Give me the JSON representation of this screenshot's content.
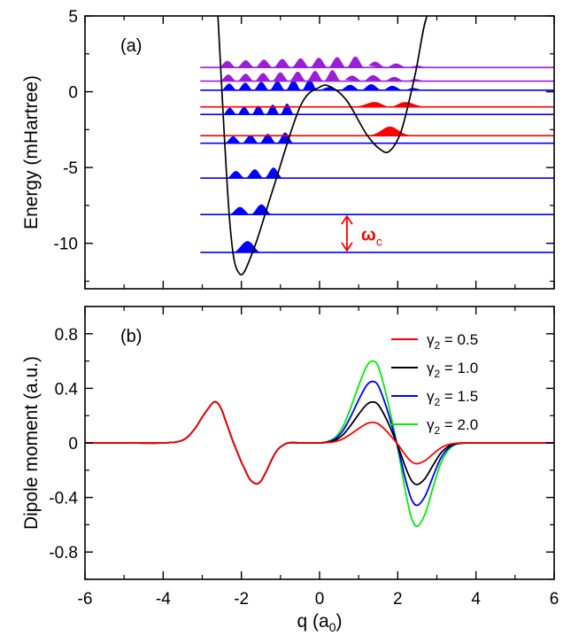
{
  "colors": {
    "blue": "#0000ff",
    "red": "#ff0000",
    "purple": "#9a1fd6",
    "black": "#000000",
    "green": "#00ee00"
  },
  "chart_data": [
    {
      "type": "line",
      "panel_label": "(a)",
      "ylabel": "Energy (mHartree)",
      "xlim": [
        -6,
        6
      ],
      "ylim": [
        -13,
        5
      ],
      "xticks": [
        -6,
        -4,
        -2,
        0,
        2,
        4,
        6
      ],
      "yticks": [
        5,
        0,
        -5,
        -10
      ],
      "ytick_labels": [
        "5",
        "0",
        "-5",
        "-10"
      ],
      "grid": false,
      "potential_color": "black",
      "potential_samples": {
        "q": [
          -2.6,
          -2.3,
          -2.05,
          -1.7,
          -1.2,
          -0.5,
          0.0,
          0.3,
          0.7,
          1.2,
          1.55,
          1.8,
          2.1,
          2.45,
          2.75,
          3.1
        ],
        "E": [
          5.0,
          -8.5,
          -12.0,
          -10.5,
          -6.5,
          -1.0,
          0.3,
          0.3,
          -0.6,
          -2.8,
          -3.8,
          -3.9,
          -2.5,
          1.2,
          5.0,
          5.0
        ]
      },
      "levels": [
        {
          "energy": -10.6,
          "color": "blue",
          "nodes": 0
        },
        {
          "energy": -8.1,
          "color": "blue",
          "nodes": 1
        },
        {
          "energy": -5.7,
          "color": "blue",
          "nodes": 2
        },
        {
          "energy": -3.4,
          "color": "blue",
          "nodes": 3
        },
        {
          "energy": -2.9,
          "color": "red",
          "nodes": 0
        },
        {
          "energy": -1.5,
          "color": "blue",
          "nodes": 4
        },
        {
          "energy": -1.0,
          "color": "red",
          "nodes": 1
        },
        {
          "energy": 0.1,
          "color": "blue",
          "nodes": 5
        },
        {
          "energy": 0.7,
          "color": "purple",
          "nodes": 6
        },
        {
          "energy": 1.6,
          "color": "purple",
          "nodes": 7
        }
      ],
      "annotation": {
        "text": "ω",
        "subscript": "c",
        "color": "red",
        "q": 0.7,
        "from_energy": -10.6,
        "to_energy": -8.1
      }
    },
    {
      "type": "line",
      "panel_label": "(b)",
      "xlabel": "q (a",
      "xlabel_subscript": "0",
      "xlabel_suffix": ")",
      "ylabel": "Dipole moment (a.u.)",
      "xlim": [
        -6,
        6
      ],
      "ylim": [
        -1.0,
        1.0
      ],
      "xticks": [
        -6,
        -4,
        -2,
        0,
        2,
        4,
        6
      ],
      "xtick_labels": [
        "-6",
        "-4",
        "-2",
        "0",
        "2",
        "4",
        "6"
      ],
      "yticks": [
        0.8,
        0.4,
        0,
        -0.4,
        -0.8
      ],
      "ytick_labels": [
        "0.8",
        "0.4",
        "0",
        "-0.4",
        "-0.8"
      ],
      "grid": false,
      "legend_position": "top-right",
      "x": [
        -6.0,
        -5.0,
        -4.0,
        -3.5,
        -3.2,
        -3.0,
        -2.8,
        -2.7,
        -2.6,
        -2.5,
        -2.4,
        -2.3,
        -2.2,
        -2.1,
        -2.0,
        -1.9,
        -1.8,
        -1.7,
        -1.6,
        -1.5,
        -1.4,
        -1.3,
        -1.2,
        -1.1,
        -1.0,
        -0.8,
        -0.5,
        -0.2,
        0.0,
        0.2,
        0.4,
        0.6,
        0.8,
        1.0,
        1.2,
        1.35,
        1.5,
        1.7,
        1.9,
        2.0,
        2.1,
        2.2,
        2.35,
        2.5,
        2.7,
        2.9,
        3.1,
        3.3,
        3.5,
        3.8,
        4.0,
        5.0,
        6.0
      ],
      "series": [
        {
          "name": "γ₂ = 0.5",
          "label": "γ",
          "subscript": "2",
          "value_text": " = 0.5",
          "color": "red",
          "scale": 0.25
        },
        {
          "name": "γ₂ = 1.0",
          "label": "γ",
          "subscript": "2",
          "value_text": " = 1.0",
          "color": "black",
          "scale": 0.5
        },
        {
          "name": "γ₂ = 1.5",
          "label": "γ",
          "subscript": "2",
          "value_text": " = 1.5",
          "color": "blue",
          "scale": 0.75
        },
        {
          "name": "γ₂ = 2.0",
          "label": "γ",
          "subscript": "2",
          "value_text": " = 2.0",
          "color": "green",
          "scale": 1.0
        }
      ],
      "left_lobe": [
        0.0,
        0.0,
        0.0,
        0.02,
        0.1,
        0.19,
        0.27,
        0.3,
        0.29,
        0.24,
        0.16,
        0.08,
        0.0,
        -0.07,
        -0.14,
        -0.2,
        -0.26,
        -0.29,
        -0.3,
        -0.28,
        -0.23,
        -0.17,
        -0.11,
        -0.06,
        -0.03,
        0.0,
        0.0,
        0.0,
        0.0,
        0.0,
        0.0,
        0.0,
        0.0,
        0.0,
        0.0,
        0.0,
        0.0,
        0.0,
        0.0,
        0.0,
        0.0,
        0.0,
        0.0,
        0.0,
        0.0,
        0.0,
        0.0,
        0.0,
        0.0,
        0.0,
        0.0,
        0.0,
        0.0
      ],
      "right_lobe_full": [
        0.0,
        0.0,
        0.0,
        0.0,
        0.0,
        0.0,
        0.0,
        0.0,
        0.0,
        0.0,
        0.0,
        0.0,
        0.0,
        0.0,
        0.0,
        0.0,
        0.0,
        0.0,
        0.0,
        0.0,
        0.0,
        0.0,
        0.0,
        0.0,
        0.0,
        0.0,
        0.0,
        0.0,
        0.0,
        0.01,
        0.04,
        0.12,
        0.26,
        0.42,
        0.56,
        0.6,
        0.56,
        0.36,
        0.1,
        -0.04,
        -0.2,
        -0.36,
        -0.55,
        -0.61,
        -0.52,
        -0.33,
        -0.15,
        -0.05,
        -0.01,
        0.0,
        0.0,
        0.0,
        0.0
      ]
    }
  ]
}
